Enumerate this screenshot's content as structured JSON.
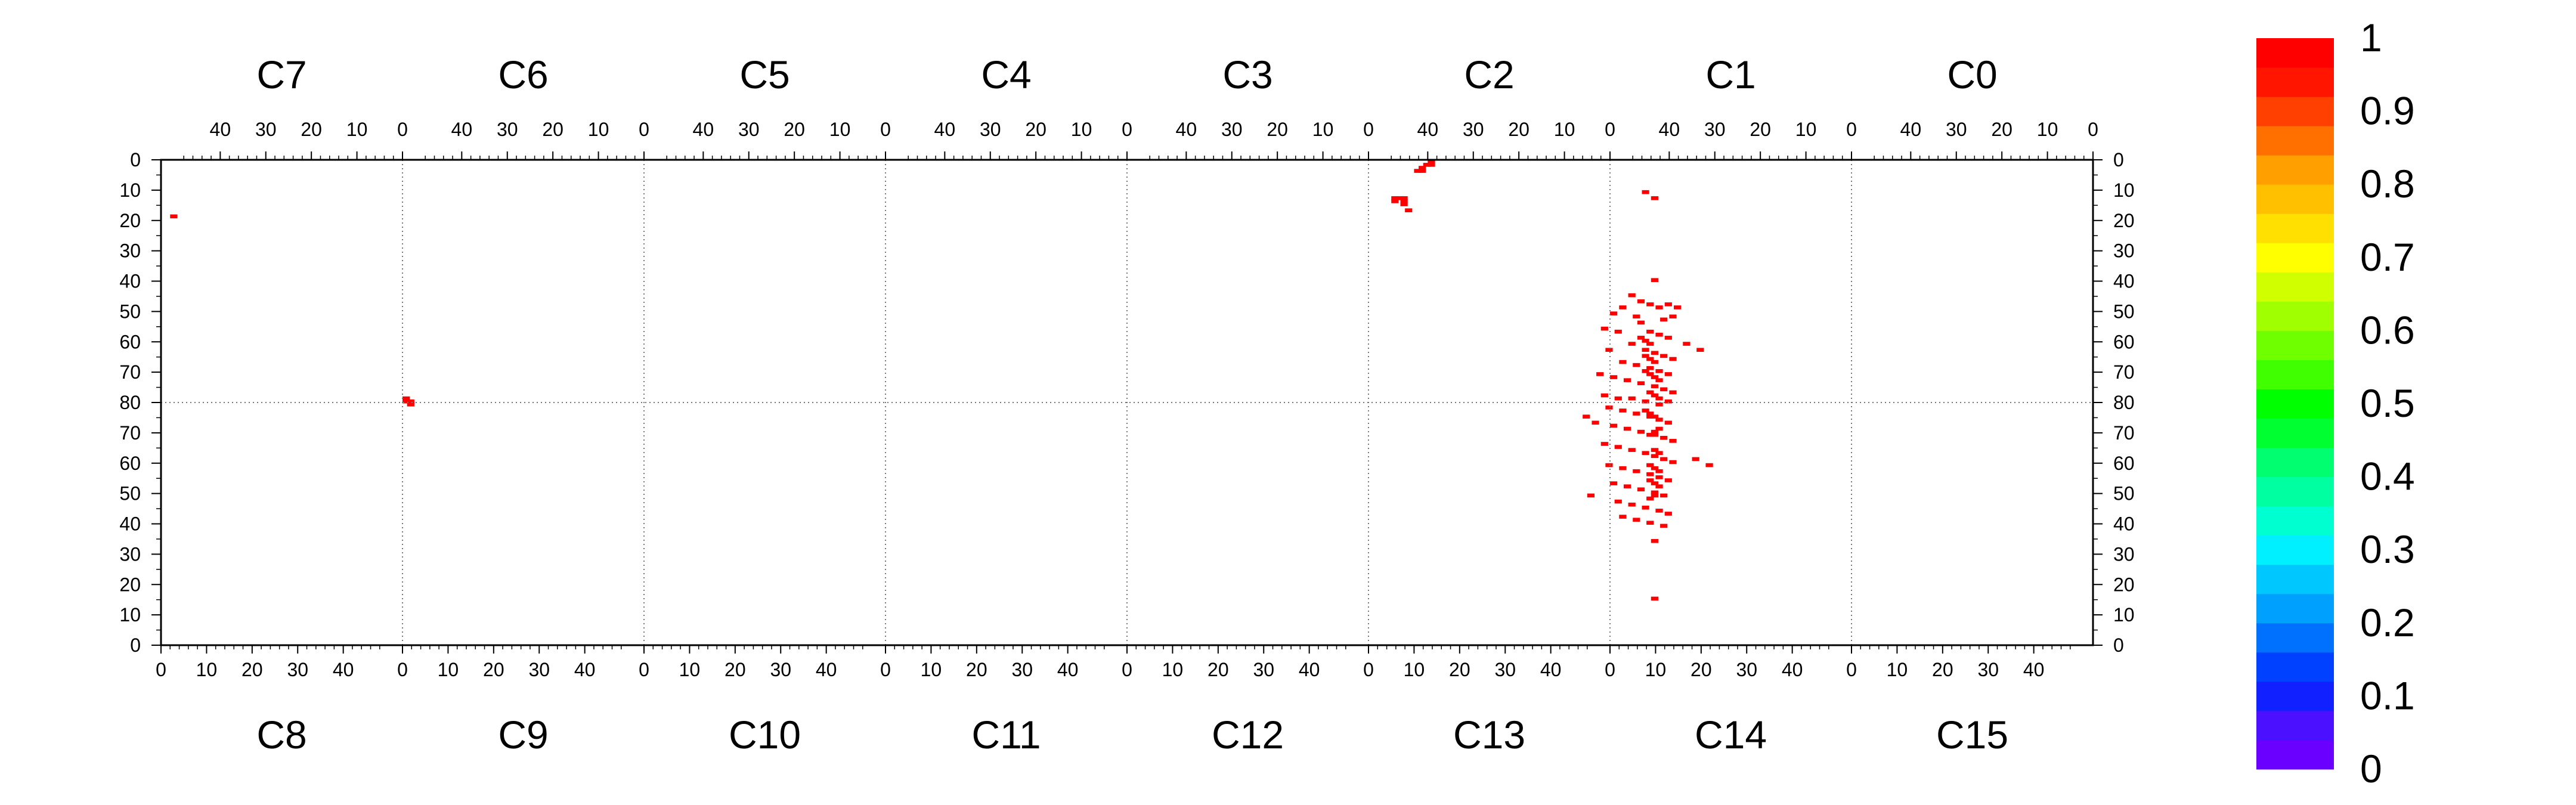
{
  "chart_data": {
    "type": "heatmap",
    "title": "",
    "xlabel": "",
    "ylabel": "",
    "zlim": [
      0,
      1
    ],
    "top_chip_labels": [
      "C7",
      "C6",
      "C5",
      "C4",
      "C3",
      "C2",
      "C1",
      "C0"
    ],
    "bottom_chip_labels": [
      "C8",
      "C9",
      "C10",
      "C11",
      "C12",
      "C13",
      "C14",
      "C15"
    ],
    "top_tick_labels": [
      "40",
      "30",
      "20",
      "10",
      "0"
    ],
    "bottom_tick_labels": [
      "0",
      "10",
      "20",
      "30",
      "40"
    ],
    "y_tick_labels_top_half": [
      "0",
      "10",
      "20",
      "30",
      "40",
      "50",
      "60",
      "70",
      "80"
    ],
    "y_tick_labels_bottom_half": [
      "70",
      "60",
      "50",
      "40",
      "30",
      "20",
      "10",
      "0"
    ],
    "colorbar_labels": [
      "1",
      "0.9",
      "0.8",
      "0.7",
      "0.6",
      "0.5",
      "0.4",
      "0.3",
      "0.2",
      "0.1",
      "0"
    ],
    "colorbar_colors": [
      "#6a00ff",
      "#4a10ff",
      "#1020ff",
      "#0040ff",
      "#0070ff",
      "#00a0ff",
      "#00c8ff",
      "#00f0ff",
      "#00ffd0",
      "#00ffa0",
      "#00ff70",
      "#00ff30",
      "#00ff00",
      "#40ff00",
      "#70ff00",
      "#a0ff00",
      "#d0ff00",
      "#ffff00",
      "#ffe000",
      "#ffc000",
      "#ffa000",
      "#ff7000",
      "#ff4000",
      "#ff1500",
      "#ff0000"
    ],
    "cell_color": "#ff0000",
    "points": [
      [
        2,
        18
      ],
      [
        53,
        78
      ],
      [
        53,
        79
      ],
      [
        54,
        79
      ],
      [
        54,
        80
      ],
      [
        270,
        12
      ],
      [
        270,
        13
      ],
      [
        271,
        12
      ],
      [
        272,
        12
      ],
      [
        272,
        13
      ],
      [
        272,
        14
      ],
      [
        273,
        16
      ],
      [
        275,
        3
      ],
      [
        276,
        2
      ],
      [
        276,
        3
      ],
      [
        277,
        1
      ],
      [
        278,
        0
      ],
      [
        278,
        1
      ],
      [
        325,
        10
      ],
      [
        327,
        12
      ],
      [
        327,
        39
      ],
      [
        322,
        44
      ],
      [
        324,
        46
      ],
      [
        326,
        47
      ],
      [
        328,
        48
      ],
      [
        330,
        47
      ],
      [
        332,
        48
      ],
      [
        320,
        48
      ],
      [
        318,
        50
      ],
      [
        323,
        51
      ],
      [
        329,
        52
      ],
      [
        331,
        51
      ],
      [
        324,
        53
      ],
      [
        316,
        55
      ],
      [
        319,
        56
      ],
      [
        326,
        56
      ],
      [
        328,
        57
      ],
      [
        330,
        58
      ],
      [
        334,
        60
      ],
      [
        322,
        60
      ],
      [
        317,
        62
      ],
      [
        325,
        62
      ],
      [
        327,
        63
      ],
      [
        329,
        64
      ],
      [
        331,
        65
      ],
      [
        320,
        66
      ],
      [
        323,
        67
      ],
      [
        326,
        68
      ],
      [
        328,
        69
      ],
      [
        330,
        70
      ],
      [
        315,
        70
      ],
      [
        318,
        71
      ],
      [
        321,
        72
      ],
      [
        324,
        73
      ],
      [
        327,
        74
      ],
      [
        329,
        75
      ],
      [
        331,
        76
      ],
      [
        316,
        77
      ],
      [
        319,
        78
      ],
      [
        322,
        78
      ],
      [
        325,
        79
      ],
      [
        328,
        80
      ],
      [
        330,
        79
      ],
      [
        317,
        81
      ],
      [
        320,
        82
      ],
      [
        323,
        83
      ],
      [
        326,
        84
      ],
      [
        328,
        85
      ],
      [
        330,
        86
      ],
      [
        314,
        86
      ],
      [
        318,
        87
      ],
      [
        321,
        88
      ],
      [
        324,
        89
      ],
      [
        327,
        90
      ],
      [
        329,
        91
      ],
      [
        331,
        92
      ],
      [
        316,
        93
      ],
      [
        319,
        94
      ],
      [
        322,
        95
      ],
      [
        325,
        96
      ],
      [
        327,
        97
      ],
      [
        329,
        98
      ],
      [
        331,
        99
      ],
      [
        317,
        100
      ],
      [
        320,
        101
      ],
      [
        323,
        102
      ],
      [
        326,
        103
      ],
      [
        328,
        104
      ],
      [
        330,
        105
      ],
      [
        318,
        106
      ],
      [
        321,
        107
      ],
      [
        324,
        108
      ],
      [
        327,
        109
      ],
      [
        329,
        110
      ],
      [
        319,
        112
      ],
      [
        322,
        113
      ],
      [
        325,
        114
      ],
      [
        328,
        115
      ],
      [
        330,
        116
      ],
      [
        320,
        117
      ],
      [
        323,
        118
      ],
      [
        326,
        119
      ],
      [
        329,
        120
      ],
      [
        327,
        125
      ],
      [
        325,
        69
      ],
      [
        326,
        70
      ],
      [
        327,
        71
      ],
      [
        328,
        72
      ],
      [
        326,
        76
      ],
      [
        327,
        77
      ],
      [
        328,
        78
      ],
      [
        325,
        82
      ],
      [
        326,
        83
      ],
      [
        327,
        84
      ],
      [
        328,
        88
      ],
      [
        327,
        89
      ],
      [
        326,
        90
      ],
      [
        327,
        95
      ],
      [
        328,
        96
      ],
      [
        326,
        100
      ],
      [
        327,
        101
      ],
      [
        328,
        102
      ],
      [
        326,
        105
      ],
      [
        327,
        106
      ],
      [
        328,
        107
      ],
      [
        327,
        110
      ],
      [
        326,
        111
      ],
      [
        325,
        64
      ],
      [
        326,
        65
      ],
      [
        327,
        66
      ],
      [
        324,
        58
      ],
      [
        325,
        59
      ],
      [
        326,
        60
      ],
      [
        337,
        62
      ],
      [
        339,
        100
      ],
      [
        336,
        98
      ],
      [
        312,
        84
      ],
      [
        313,
        110
      ],
      [
        327,
        144
      ]
    ]
  }
}
